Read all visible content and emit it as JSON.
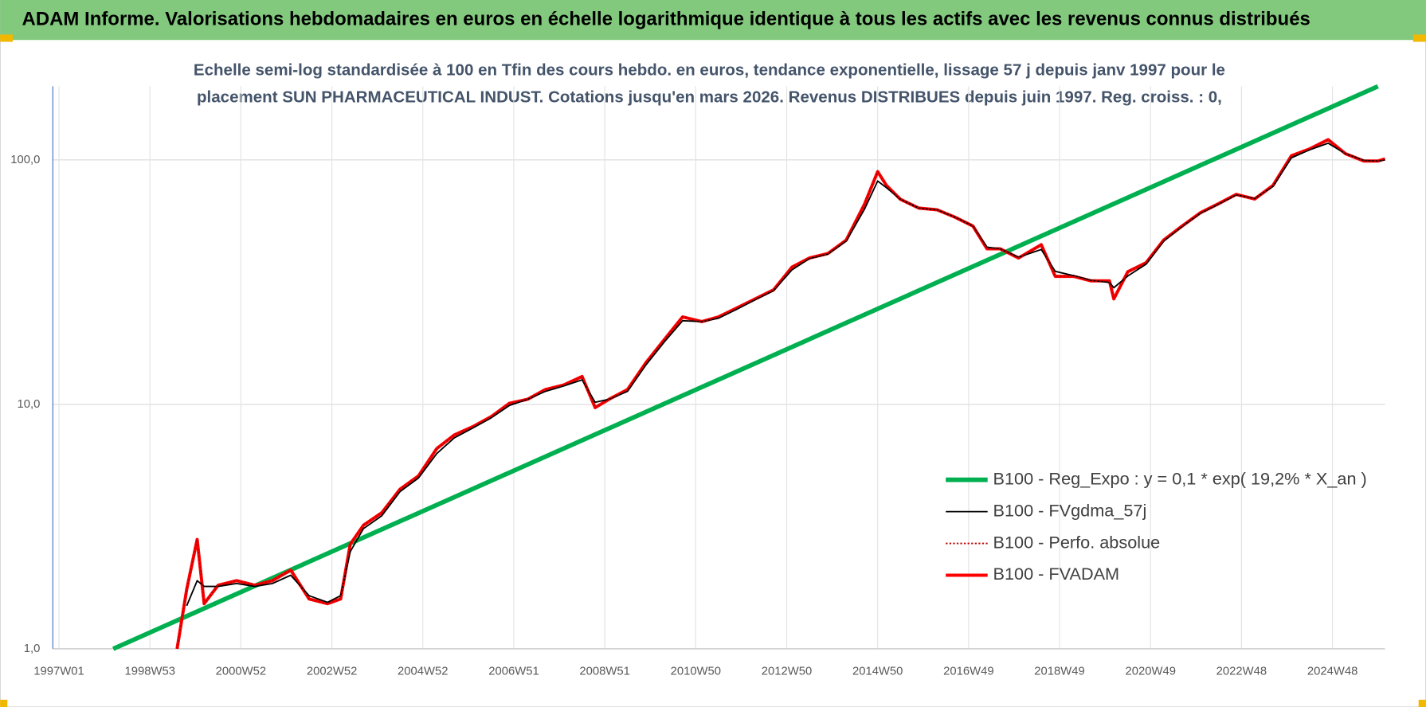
{
  "chart_data": {
    "type": "line",
    "title": "ADAM Informe. Valorisations hebdomadaires en euros en échelle logarithmique identique à tous les actifs avec les revenus connus distribués",
    "subtitle": [
      "Echelle semi-log standardisée à 100 en Tfin des cours hebdo. en euros, tendance exponentielle, lissage 57 j depuis janv 1997 pour le",
      "placement SUN PHARMACEUTICAL INDUST. Cotations jusqu'en mars 2026. Revenus DISTRIBUES depuis juin 1997. Reg. croiss. : 0,"
    ],
    "log_scale": true,
    "grid": true,
    "legend_position": "right",
    "xlim": [
      -7,
      1516
    ],
    "ylim": [
      1,
      200
    ],
    "xticks": [
      {
        "value": 0,
        "label": "1997W01"
      },
      {
        "value": 104,
        "label": "1998W53"
      },
      {
        "value": 208,
        "label": "2000W52"
      },
      {
        "value": 312,
        "label": "2002W52"
      },
      {
        "value": 416,
        "label": "2004W52"
      },
      {
        "value": 520,
        "label": "2006W51"
      },
      {
        "value": 624,
        "label": "2008W51"
      },
      {
        "value": 728,
        "label": "2010W50"
      },
      {
        "value": 832,
        "label": "2012W50"
      },
      {
        "value": 936,
        "label": "2014W50"
      },
      {
        "value": 1040,
        "label": "2016W49"
      },
      {
        "value": 1144,
        "label": "2018W49"
      },
      {
        "value": 1248,
        "label": "2020W49"
      },
      {
        "value": 1352,
        "label": "2022W48"
      },
      {
        "value": 1456,
        "label": "2024W48"
      }
    ],
    "yticks": [
      {
        "value": 1,
        "label": "1,0"
      },
      {
        "value": 10,
        "label": "10,0"
      },
      {
        "value": 100,
        "label": "100,0"
      }
    ],
    "series": [
      {
        "name": "B100 - Reg_Expo : y = 0,1 * exp( 19,2% *  X_an )",
        "color": "#00b050",
        "style": "solid",
        "x": [
          62,
          1508
        ],
        "values": [
          1,
          200
        ]
      },
      {
        "name": "B100 - FVgdma_57j",
        "color": "#000000",
        "style": "solid",
        "x": [
          146,
          158,
          166,
          182,
          203,
          224,
          244,
          265,
          286,
          307,
          322,
          333,
          348,
          369,
          390,
          411,
          432,
          452,
          473,
          494,
          515,
          536,
          556,
          577,
          598,
          613,
          629,
          650,
          671,
          692,
          713,
          735,
          754,
          775,
          796,
          817,
          838,
          858,
          879,
          900,
          921,
          936,
          946,
          962,
          983,
          1004,
          1024,
          1045,
          1061,
          1076,
          1097,
          1123,
          1139,
          1160,
          1180,
          1201,
          1206,
          1222,
          1243,
          1263,
          1284,
          1305,
          1326,
          1346,
          1367,
          1388,
          1409,
          1430,
          1451,
          1471,
          1492,
          1508,
          1516
        ],
        "values": [
          1.5,
          1.9,
          1.8,
          1.8,
          1.85,
          1.8,
          1.85,
          2.0,
          1.65,
          1.55,
          1.65,
          2.5,
          3.1,
          3.5,
          4.4,
          5.0,
          6.3,
          7.3,
          8.0,
          8.8,
          9.9,
          10.5,
          11.3,
          11.9,
          12.6,
          10.2,
          10.5,
          11.3,
          14.5,
          18.0,
          22.0,
          21.8,
          22.5,
          24.5,
          26.8,
          29.2,
          35.5,
          39.5,
          41.2,
          46.5,
          63,
          82,
          77,
          69,
          63.5,
          62.5,
          58.4,
          53.6,
          44,
          43.3,
          40,
          43,
          35,
          33.6,
          32.2,
          31.5,
          30,
          33.5,
          37.5,
          46.5,
          53.4,
          60.5,
          66,
          72,
          69.5,
          78,
          102,
          110,
          117,
          106,
          99.5,
          99,
          100
        ]
      },
      {
        "name": "B100 - Perfo. absolue",
        "color": "#c00000",
        "style": "dotted",
        "x": [
          135,
          146,
          158,
          166,
          182,
          203,
          224,
          244,
          265,
          286,
          307,
          322,
          333,
          348,
          369,
          390,
          411,
          432,
          452,
          473,
          494,
          515,
          536,
          556,
          577,
          598,
          613,
          629,
          650,
          671,
          692,
          713,
          735,
          754,
          775,
          796,
          817,
          838,
          858,
          879,
          900,
          921,
          936,
          946,
          962,
          983,
          1004,
          1024,
          1045,
          1061,
          1076,
          1097,
          1123,
          1139,
          1160,
          1180,
          1201,
          1206,
          1222,
          1243,
          1263,
          1284,
          1305,
          1326,
          1346,
          1367,
          1388,
          1409,
          1430,
          1451,
          1471,
          1492,
          1508,
          1516
        ],
        "values": [
          1.0,
          1.75,
          2.8,
          1.53,
          1.82,
          1.9,
          1.82,
          1.9,
          2.1,
          1.6,
          1.53,
          1.6,
          2.68,
          3.2,
          3.6,
          4.5,
          5.1,
          6.6,
          7.5,
          8.1,
          8.9,
          10.1,
          10.5,
          11.5,
          12,
          13,
          9.7,
          10.5,
          11.5,
          14.8,
          18.4,
          22.8,
          21.8,
          22.8,
          24.8,
          27,
          29.4,
          36.4,
          39.7,
          41.4,
          47,
          66,
          89.5,
          78.7,
          69,
          63.5,
          62.5,
          58.4,
          53.6,
          43.3,
          43.3,
          39.7,
          45,
          33.4,
          33.4,
          32,
          32,
          27,
          34.9,
          38,
          47,
          53.6,
          60.8,
          66.3,
          72.3,
          69.2,
          78.7,
          104,
          111,
          121,
          106,
          99,
          99,
          101
        ]
      },
      {
        "name": "B100 - FVADAM",
        "color": "#ff0000",
        "style": "solid",
        "x": [
          135,
          146,
          158,
          166,
          182,
          203,
          224,
          244,
          265,
          286,
          307,
          322,
          333,
          348,
          369,
          390,
          411,
          432,
          452,
          473,
          494,
          515,
          536,
          556,
          577,
          598,
          613,
          629,
          650,
          671,
          692,
          713,
          735,
          754,
          775,
          796,
          817,
          838,
          858,
          879,
          900,
          921,
          936,
          946,
          962,
          983,
          1004,
          1024,
          1045,
          1061,
          1076,
          1097,
          1123,
          1139,
          1160,
          1180,
          1201,
          1206,
          1222,
          1243,
          1263,
          1284,
          1305,
          1326,
          1346,
          1367,
          1388,
          1409,
          1430,
          1451,
          1471,
          1492,
          1508,
          1516
        ],
        "values": [
          1.0,
          1.75,
          2.8,
          1.53,
          1.82,
          1.9,
          1.82,
          1.9,
          2.1,
          1.6,
          1.53,
          1.6,
          2.68,
          3.2,
          3.6,
          4.5,
          5.1,
          6.6,
          7.5,
          8.1,
          8.9,
          10.1,
          10.5,
          11.5,
          12,
          13,
          9.7,
          10.5,
          11.5,
          14.8,
          18.4,
          22.8,
          21.8,
          22.8,
          24.8,
          27,
          29.4,
          36.4,
          39.7,
          41.4,
          47,
          66,
          89.5,
          78.7,
          69,
          63.5,
          62.5,
          58.4,
          53.6,
          43.3,
          43.3,
          39.7,
          45,
          33.4,
          33.4,
          32,
          32,
          27,
          34.9,
          38,
          47,
          53.6,
          60.8,
          66.3,
          72.3,
          69.2,
          78.7,
          104,
          111,
          121,
          106,
          99,
          99,
          101
        ]
      }
    ]
  }
}
